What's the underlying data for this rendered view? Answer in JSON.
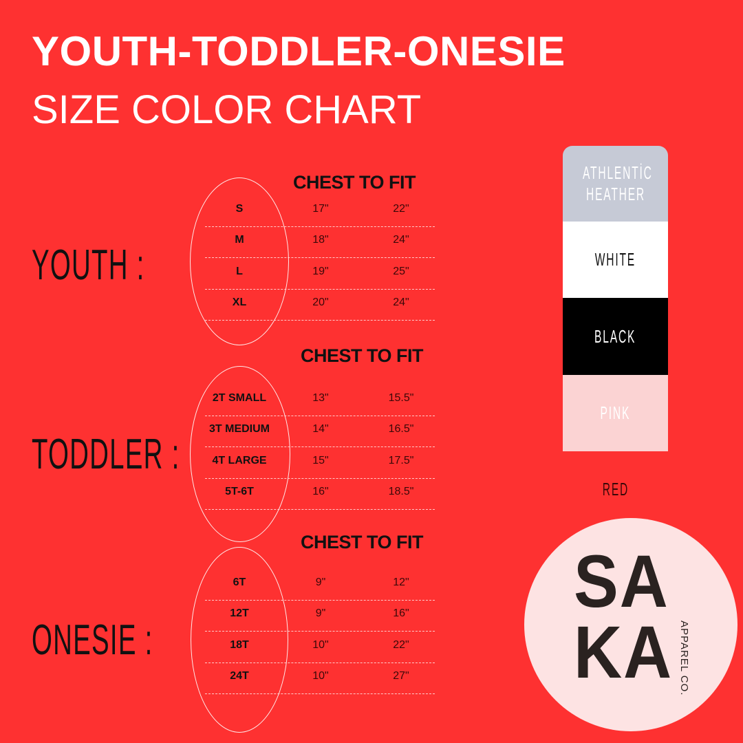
{
  "header": {
    "title": "YOUTH-TODDLER-ONESIE",
    "subtitle": "SIZE COLOR CHART"
  },
  "sections": [
    {
      "label": "YOUTH :",
      "chest_label": "CHEST TO FIT",
      "rows": [
        [
          "S",
          "17\"",
          "22\""
        ],
        [
          "M",
          "18\"",
          "24\""
        ],
        [
          "L",
          "19\"",
          "25\""
        ],
        [
          "XL",
          "20\"",
          "24\""
        ]
      ]
    },
    {
      "label": "TODDLER :",
      "chest_label": "CHEST TO FIT",
      "rows": [
        [
          "2T SMALL",
          "13\"",
          "15.5\""
        ],
        [
          "3T MEDIUM",
          "14\"",
          "16.5\""
        ],
        [
          "4T LARGE",
          "15\"",
          "17.5\""
        ],
        [
          "5T-6T",
          "16\"",
          "18.5\""
        ]
      ]
    },
    {
      "label": "ONESIE :",
      "chest_label": "CHEST TO FIT",
      "rows": [
        [
          "6T",
          "9\"",
          "12\""
        ],
        [
          "12T",
          "9\"",
          "16\""
        ],
        [
          "18T",
          "10\"",
          "22\""
        ],
        [
          "24T",
          "10\"",
          "27\""
        ]
      ]
    }
  ],
  "colors": [
    {
      "name": "ATHLENTİC HEATHER",
      "swatch": "#c6cad6",
      "text_color": "#ffffff"
    },
    {
      "name": "WHITE",
      "swatch": "#ffffff",
      "text_color": "#111111"
    },
    {
      "name": "BLACK",
      "swatch": "#000000",
      "text_color": "#ffffff"
    },
    {
      "name": "PINK",
      "swatch": "#fbd3d3",
      "text_color": "#ffffff"
    },
    {
      "name": "RED",
      "swatch": "#fe3131",
      "text_color": "#3a0808"
    }
  ],
  "logo": {
    "line1": "SA",
    "line2": "KA",
    "sub": "APPAREL CO."
  },
  "theme": {
    "background": "#fe3131"
  }
}
